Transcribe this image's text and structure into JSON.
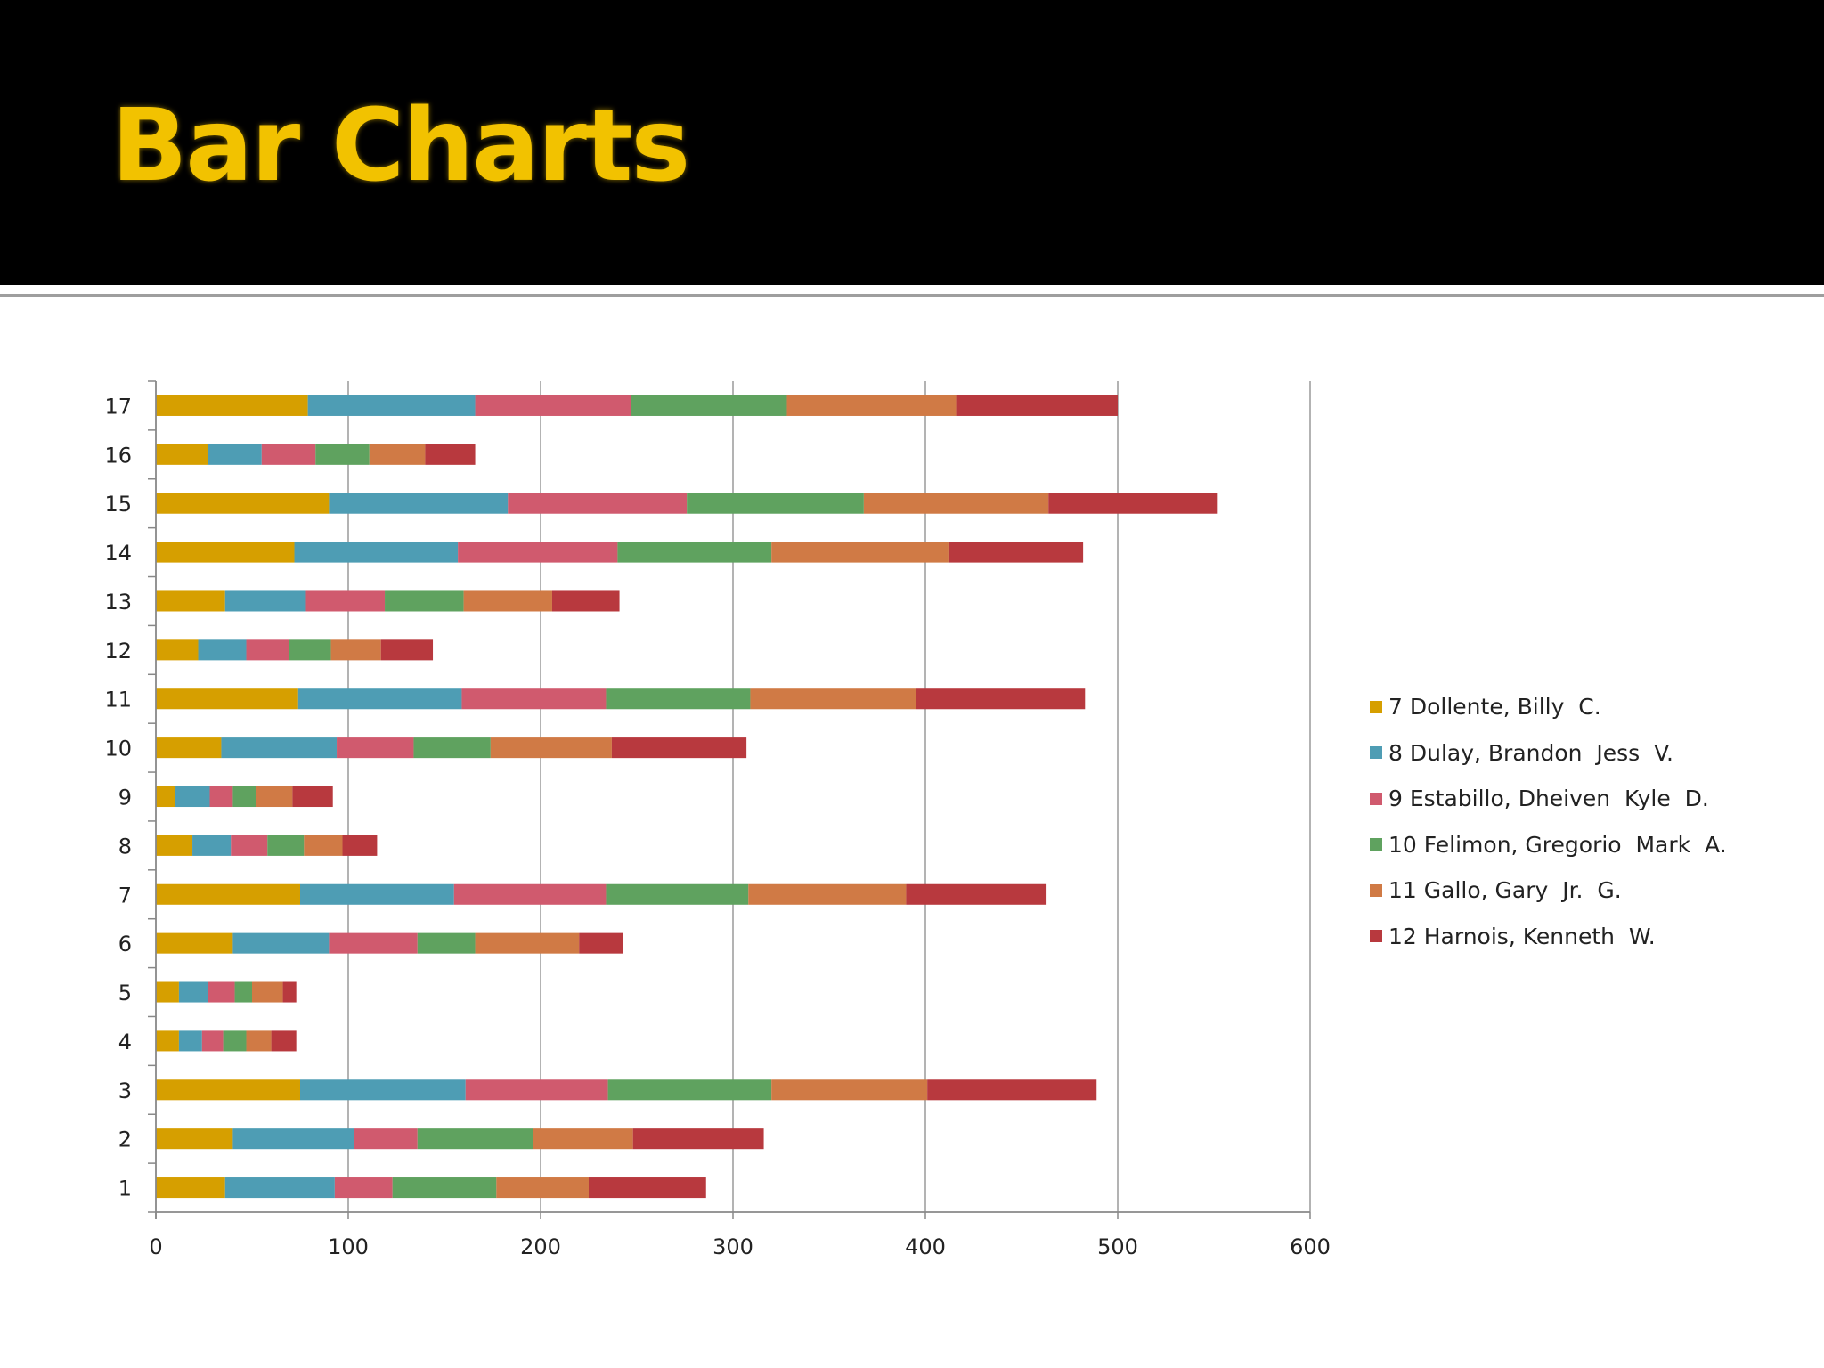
{
  "slide": {
    "title": "Bar Charts"
  },
  "chart_data": {
    "type": "bar",
    "orientation": "horizontal",
    "stacked": true,
    "title": "",
    "xlabel": "",
    "ylabel": "",
    "xlim": [
      0,
      600
    ],
    "x_ticks": [
      0,
      100,
      200,
      300,
      400,
      500,
      600
    ],
    "grid": true,
    "legend_position": "right",
    "categories": [
      "1",
      "2",
      "3",
      "4",
      "5",
      "6",
      "7",
      "8",
      "9",
      "10",
      "11",
      "12",
      "13",
      "14",
      "15",
      "16",
      "17"
    ],
    "series": [
      {
        "name": "7 Dollente, Billy  C.",
        "color": "#d69f00",
        "values": [
          36,
          40,
          75,
          12,
          12,
          40,
          75,
          19,
          10,
          34,
          74,
          22,
          36,
          72,
          90,
          27,
          79
        ]
      },
      {
        "name": "8 Dulay, Brandon  Jess  V.",
        "color": "#4e9db4",
        "values": [
          57,
          63,
          86,
          12,
          15,
          50,
          80,
          20,
          18,
          60,
          85,
          25,
          42,
          85,
          93,
          28,
          87
        ]
      },
      {
        "name": "9 Estabillo, Dheiven  Kyle  D.",
        "color": "#d05a6e",
        "values": [
          30,
          33,
          74,
          11,
          14,
          46,
          79,
          19,
          12,
          40,
          75,
          22,
          41,
          83,
          93,
          28,
          81
        ]
      },
      {
        "name": "10 Felimon, Gregorio  Mark  A.",
        "color": "#5fa25f",
        "values": [
          54,
          60,
          85,
          12,
          9,
          30,
          74,
          19,
          12,
          40,
          75,
          22,
          41,
          80,
          92,
          28,
          81
        ]
      },
      {
        "name": "11 Gallo, Gary  Jr.  G.",
        "color": "#d07a45",
        "values": [
          48,
          52,
          81,
          13,
          16,
          54,
          82,
          20,
          19,
          63,
          86,
          26,
          46,
          92,
          96,
          29,
          88
        ]
      },
      {
        "name": "12 Harnois, Kenneth  W.",
        "color": "#b8393e",
        "values": [
          61,
          68,
          88,
          13,
          7,
          23,
          73,
          18,
          21,
          70,
          88,
          27,
          35,
          70,
          88,
          26,
          84
        ]
      }
    ]
  }
}
